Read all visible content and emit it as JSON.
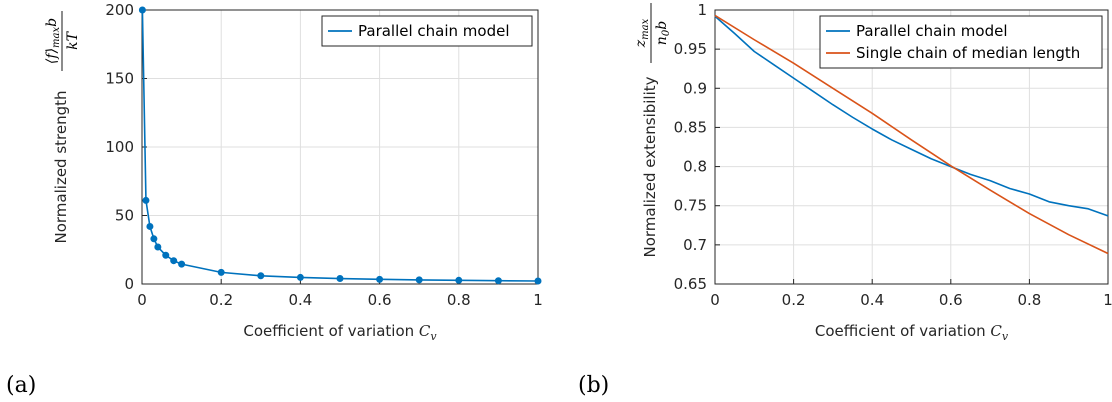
{
  "chart_data": [
    {
      "type": "line",
      "panel_label": "(a)",
      "xlabel": "Coefficient of variation",
      "xlabel_symbol": "C",
      "xlabel_subscript": "v",
      "ylabel": "Normalized strength",
      "ylabel_math_num": "⟨f⟩",
      "ylabel_math_num_sub": "max",
      "ylabel_math_num_tail": "b",
      "ylabel_math_den": "kT",
      "xlim": [
        0,
        1
      ],
      "ylim": [
        0,
        200
      ],
      "xticks": [
        "0",
        "0.2",
        "0.4",
        "0.6",
        "0.8",
        "1"
      ],
      "yticks": [
        "0",
        "50",
        "100",
        "150",
        "200"
      ],
      "grid": true,
      "legend_position": "top-right",
      "series": [
        {
          "name": "Parallel chain model",
          "color": "#0072BD",
          "markers": true,
          "x": [
            0.001,
            0.01,
            0.02,
            0.03,
            0.04,
            0.06,
            0.08,
            0.1,
            0.2,
            0.3,
            0.4,
            0.5,
            0.6,
            0.7,
            0.8,
            0.9,
            1.0
          ],
          "y": [
            200,
            61,
            42,
            33,
            27,
            21,
            17,
            14.5,
            8.5,
            6,
            4.8,
            4,
            3.4,
            3,
            2.7,
            2.4,
            2.2
          ]
        }
      ]
    },
    {
      "type": "line",
      "panel_label": "(b)",
      "xlabel": "Coefficient of variation",
      "xlabel_symbol": "C",
      "xlabel_subscript": "v",
      "ylabel": "Normalized extensibility",
      "ylabel_math_num": "z",
      "ylabel_math_num_sub": "max",
      "ylabel_math_den": "n",
      "ylabel_math_den_sub": "0",
      "ylabel_math_den_tail": "b",
      "xlim": [
        0,
        1
      ],
      "ylim": [
        0.65,
        1
      ],
      "xticks": [
        "0",
        "0.2",
        "0.4",
        "0.6",
        "0.8",
        "1"
      ],
      "yticks": [
        "0.65",
        "0.7",
        "0.75",
        "0.8",
        "0.85",
        "0.9",
        "0.95",
        "1"
      ],
      "grid": true,
      "legend_position": "top-right",
      "series": [
        {
          "name": "Parallel chain model",
          "color": "#0072BD",
          "x": [
            0,
            0.05,
            0.1,
            0.15,
            0.2,
            0.25,
            0.3,
            0.35,
            0.4,
            0.45,
            0.5,
            0.55,
            0.6,
            0.65,
            0.7,
            0.75,
            0.8,
            0.85,
            0.9,
            0.95,
            1.0
          ],
          "y": [
            0.992,
            0.97,
            0.947,
            0.93,
            0.913,
            0.896,
            0.879,
            0.863,
            0.848,
            0.834,
            0.822,
            0.81,
            0.8,
            0.79,
            0.782,
            0.772,
            0.765,
            0.755,
            0.75,
            0.746,
            0.737
          ]
        },
        {
          "name": "Single chain of median length",
          "color": "#D95319",
          "x": [
            0,
            0.1,
            0.2,
            0.3,
            0.4,
            0.5,
            0.6,
            0.7,
            0.8,
            0.9,
            1.0
          ],
          "y": [
            0.993,
            0.962,
            0.932,
            0.9,
            0.868,
            0.834,
            0.801,
            0.77,
            0.74,
            0.713,
            0.689
          ]
        }
      ]
    }
  ]
}
